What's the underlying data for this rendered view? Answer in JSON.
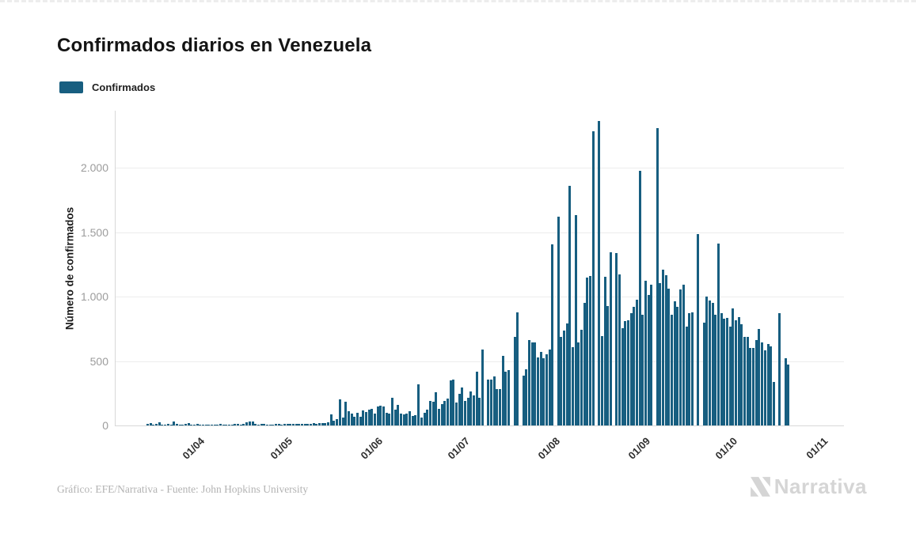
{
  "page": {
    "title": "Confirmados diarios en Venezuela"
  },
  "legend": {
    "items": [
      {
        "label": "Confirmados",
        "color": "#175e80"
      }
    ]
  },
  "footer": {
    "credit": "Gráfico: EFE/Narrativa - Fuente: John Hopkins University",
    "logo_text": "Narrativa",
    "logo_icon": "narrativa-n-mark"
  },
  "chart_data": {
    "type": "bar",
    "title": "Confirmados diarios en Venezuela",
    "xlabel": "",
    "ylabel": "Número de confirmados",
    "ylim": [
      0,
      2400
    ],
    "grid": true,
    "legend_position": "top-left",
    "bar_color": "#175e80",
    "axis_color": "#d8d8d8",
    "gridline_color": "#ececec",
    "x_ticks": [
      "01/04",
      "01/05",
      "01/06",
      "01/07",
      "01/08",
      "01/09",
      "01/10",
      "01/11"
    ],
    "y_ticks": [
      "0",
      "500",
      "1.000",
      "1.500",
      "2.000"
    ],
    "series": [
      {
        "name": "Confirmados",
        "frequency": "daily",
        "start_date": "16/03",
        "end_date": "22/10",
        "dates": [
          "16/03",
          "17/03",
          "18/03",
          "19/03",
          "20/03",
          "21/03",
          "22/03",
          "23/03",
          "24/03",
          "25/03",
          "26/03",
          "27/03",
          "28/03",
          "29/03",
          "30/03",
          "31/03",
          "01/04",
          "02/04",
          "03/04",
          "04/04",
          "05/04",
          "06/04",
          "07/04",
          "08/04",
          "09/04",
          "10/04",
          "11/04",
          "12/04",
          "13/04",
          "14/04",
          "15/04",
          "16/04",
          "17/04",
          "18/04",
          "19/04",
          "20/04",
          "21/04",
          "22/04",
          "23/04",
          "24/04",
          "25/04",
          "26/04",
          "27/04",
          "28/04",
          "29/04",
          "30/04",
          "01/05",
          "02/05",
          "03/05",
          "04/05",
          "05/05",
          "06/05",
          "07/05",
          "08/05",
          "09/05",
          "10/05",
          "11/05",
          "12/05",
          "13/05",
          "14/05",
          "15/05",
          "16/05",
          "17/05",
          "18/05",
          "19/05",
          "20/05",
          "21/05",
          "22/05",
          "23/05",
          "24/05",
          "25/05",
          "26/05",
          "27/05",
          "28/05",
          "29/05",
          "30/05",
          "31/05",
          "01/06",
          "02/06",
          "03/06",
          "04/06",
          "05/06",
          "06/06",
          "07/06",
          "08/06",
          "09/06",
          "10/06",
          "11/06",
          "12/06",
          "13/06",
          "14/06",
          "15/06",
          "16/06",
          "17/06",
          "18/06",
          "19/06",
          "20/06",
          "21/06",
          "22/06",
          "23/06",
          "24/06",
          "25/06",
          "26/06",
          "27/06",
          "28/06",
          "29/06",
          "30/06",
          "01/07",
          "02/07",
          "03/07",
          "04/07",
          "05/07",
          "06/07",
          "07/07",
          "08/07",
          "09/07",
          "10/07",
          "11/07",
          "12/07",
          "13/07",
          "14/07",
          "15/07",
          "16/07",
          "17/07",
          "18/07",
          "19/07",
          "20/07",
          "21/07",
          "22/07",
          "23/07",
          "24/07",
          "25/07",
          "26/07",
          "27/07",
          "28/07",
          "29/07",
          "30/07",
          "31/07",
          "01/08",
          "02/08",
          "03/08",
          "04/08",
          "05/08",
          "06/08",
          "07/08",
          "08/08",
          "09/08",
          "10/08",
          "11/08",
          "12/08",
          "13/08",
          "14/08",
          "15/08",
          "16/08",
          "17/08",
          "18/08",
          "19/08",
          "20/08",
          "21/08",
          "22/08",
          "23/08",
          "24/08",
          "25/08",
          "26/08",
          "27/08",
          "28/08",
          "29/08",
          "30/08",
          "31/08",
          "01/09",
          "02/09",
          "03/09",
          "04/09",
          "05/09",
          "06/09",
          "07/09",
          "08/09",
          "09/09",
          "10/09",
          "11/09",
          "12/09",
          "13/09",
          "14/09",
          "15/09",
          "16/09",
          "17/09",
          "18/09",
          "19/09",
          "20/09",
          "21/09",
          "22/09",
          "23/09",
          "24/09",
          "25/09",
          "26/09",
          "27/09",
          "28/09",
          "29/09",
          "30/09",
          "01/10",
          "02/10",
          "03/10",
          "04/10",
          "05/10",
          "06/10",
          "07/10",
          "08/10",
          "09/10",
          "10/10",
          "11/10",
          "12/10",
          "13/10",
          "14/10",
          "15/10",
          "16/10",
          "17/10",
          "18/10",
          "19/10",
          "20/10",
          "21/10",
          "22/10"
        ],
        "values": [
          12,
          16,
          6,
          10,
          22,
          8,
          5,
          10,
          9,
          28,
          12,
          7,
          5,
          10,
          16,
          8,
          9,
          11,
          8,
          5,
          7,
          4,
          6,
          5,
          8,
          10,
          6,
          8,
          9,
          7,
          10,
          12,
          8,
          15,
          27,
          31,
          29,
          12,
          6,
          13,
          10,
          7,
          9,
          5,
          10,
          12,
          8,
          10,
          12,
          10,
          14,
          12,
          10,
          12,
          14,
          10,
          12,
          16,
          14,
          18,
          20,
          16,
          22,
          84,
          36,
          48,
          205,
          59,
          182,
          111,
          90,
          66,
          100,
          70,
          115,
          105,
          120,
          130,
          95,
          150,
          155,
          150,
          100,
          90,
          215,
          120,
          160,
          90,
          85,
          95,
          110,
          75,
          80,
          320,
          60,
          100,
          120,
          190,
          185,
          260,
          130,
          165,
          190,
          210,
          353,
          357,
          178,
          246,
          295,
          191,
          215,
          265,
          234,
          418,
          215,
          590,
          0,
          357,
          357,
          383,
          285,
          285,
          541,
          418,
          428,
          0,
          689,
          880,
          0,
          388,
          439,
          664,
          644,
          644,
          531,
          572,
          525,
          550,
          592,
          1407,
          0,
          1620,
          685,
          736,
          790,
          1860,
          610,
          1634,
          644,
          746,
          950,
          1148,
          1160,
          2288,
          0,
          2366,
          693,
          1156,
          926,
          1345,
          0,
          1341,
          1173,
          757,
          808,
          818,
          870,
          921,
          976,
          1980,
          859,
          1126,
          1013,
          1095,
          0,
          2308,
          1105,
          1208,
          1167,
          1064,
          859,
          962,
          921,
          1054,
          1095,
          767,
          870,
          880,
          0,
          1485,
          0,
          798,
          1003,
          972,
          951,
          859,
          1413,
          870,
          828,
          833,
          767,
          911,
          818,
          843,
          788,
          685,
          685,
          603,
          603,
          664,
          750,
          644,
          582,
          634,
          613,
          336,
          0,
          874,
          0,
          525,
          476
        ]
      }
    ]
  }
}
